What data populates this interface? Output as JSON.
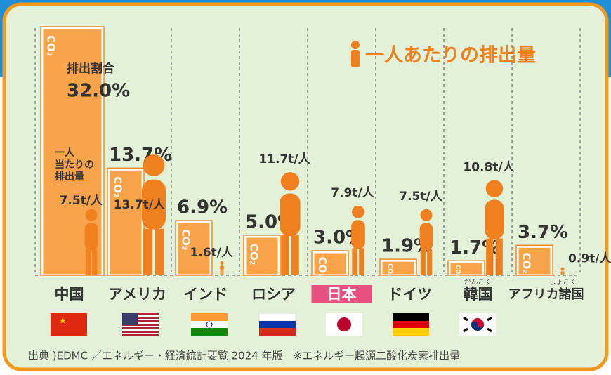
{
  "chart_data": {
    "type": "bar",
    "categories": [
      "中国",
      "アメリカ",
      "インド",
      "ロシア",
      "日本",
      "ドイツ",
      "韓国",
      "アフリカ諸国"
    ],
    "category_ruby": [
      null,
      null,
      null,
      null,
      null,
      null,
      "かんこく",
      "しょこく"
    ],
    "highlight_index": 4,
    "bar_label": "CO₂",
    "series": [
      {
        "name": "排出割合",
        "color": "#f9a34a",
        "values": [
          32.0,
          13.7,
          6.9,
          5.0,
          3.0,
          1.9,
          1.7,
          3.7
        ],
        "value_labels": [
          "32.0%",
          "13.7%",
          "6.9%",
          "5.0%",
          "3.0%",
          "1.9%",
          "1.7%",
          "3.7%"
        ]
      },
      {
        "name": "一人あたりの排出量",
        "color": "#f07f1e",
        "values": [
          7.5,
          13.7,
          1.6,
          11.7,
          7.9,
          7.5,
          10.8,
          0.9
        ],
        "value_labels": [
          "7.5t/人",
          "13.7t/人",
          "1.6t/人",
          "11.7t/人",
          "7.9t/人",
          "7.5t/人",
          "10.8t/人",
          "0.9t/人"
        ]
      }
    ],
    "per_capita_note": [
      "一人",
      "当たりの",
      "排出量"
    ],
    "source": "出典 )EDMC ／エネルギー・経済統計要覧 2024 年版　※エネルギー起源二酸化炭素排出量"
  }
}
